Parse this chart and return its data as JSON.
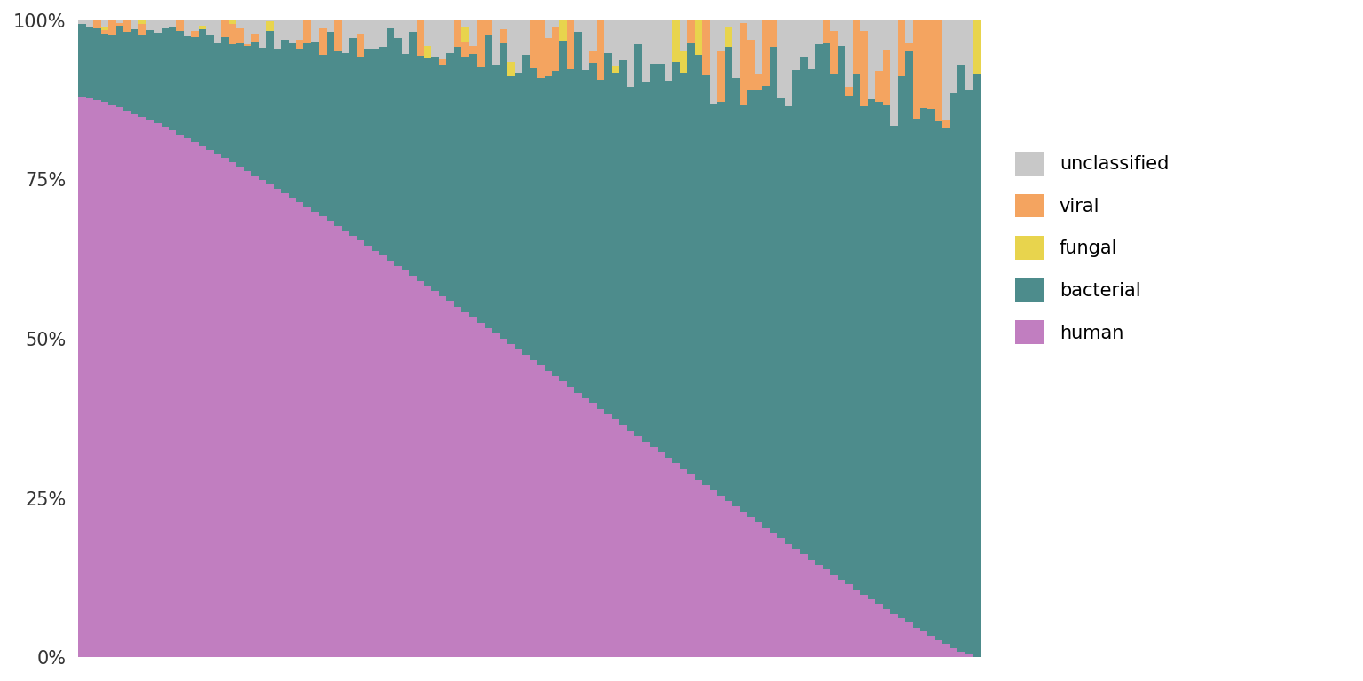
{
  "n_samples": 120,
  "colors": {
    "human": "#C17EC0",
    "bacterial": "#4D8C8C",
    "viral": "#F4A460",
    "fungal": "#E8D44D",
    "unclassified": "#C8C8C8"
  },
  "legend_labels": [
    "unclassified",
    "viral",
    "fungal",
    "bacterial",
    "human"
  ],
  "legend_colors": [
    "#C8C8C8",
    "#F4A460",
    "#E8D44D",
    "#4D8C8C",
    "#C17EC0"
  ],
  "background_color": "#FFFFFF",
  "ytick_labels": [
    "0%",
    "25%",
    "50%",
    "75%",
    "100%"
  ],
  "ytick_positions": [
    0.0,
    0.25,
    0.5,
    0.75,
    1.0
  ]
}
